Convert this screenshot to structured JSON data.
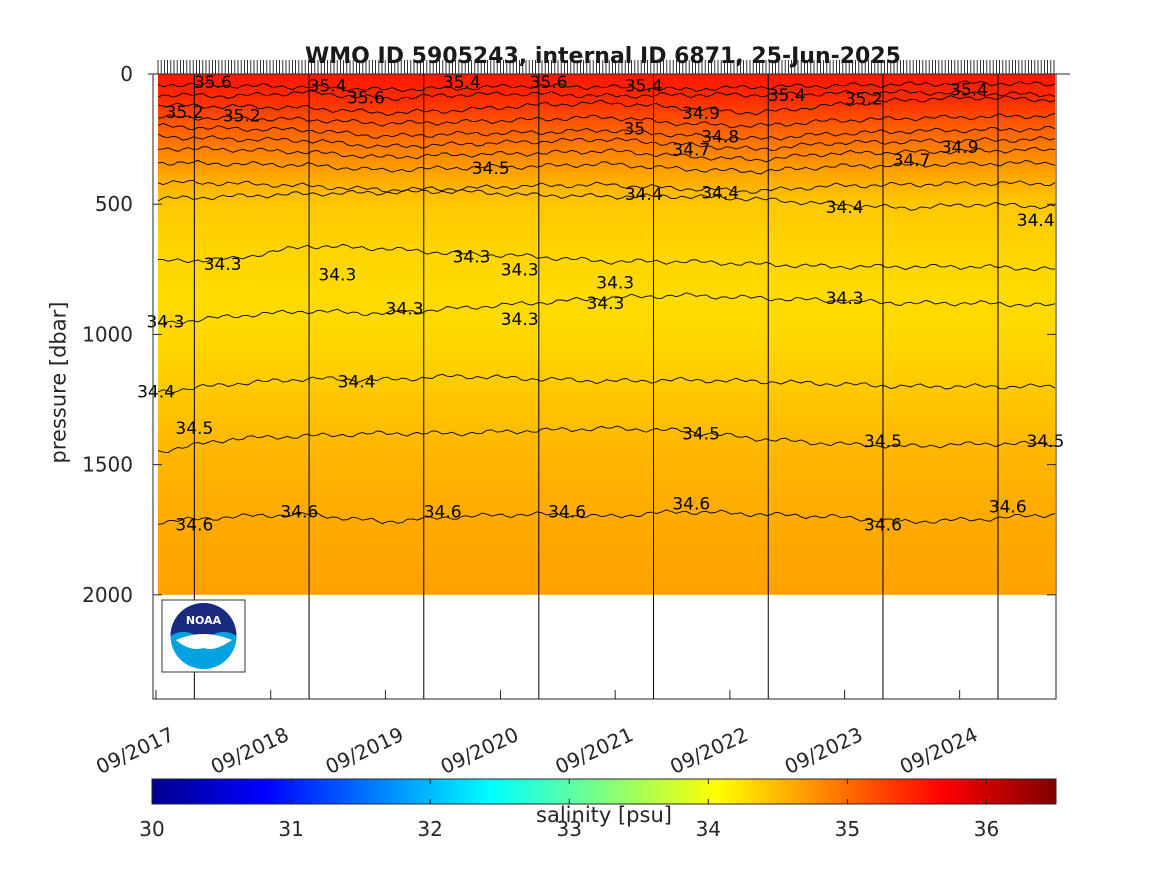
{
  "title": "WMO ID 5905243, internal ID 6871, 25-Jun-2025",
  "logo_text": "NOAA",
  "chart_data": {
    "type": "heatmap",
    "title": "WMO ID 5905243, internal ID 6871, 25-Jun-2025",
    "xlabel": "",
    "ylabel": "pressure [dbar]",
    "x_axis": {
      "type": "date",
      "range": [
        "2017-09-01",
        "2025-06-25"
      ],
      "tick_labels": [
        "09/2017",
        "09/2018",
        "09/2019",
        "09/2020",
        "09/2021",
        "09/2022",
        "09/2023",
        "09/2024"
      ],
      "tick_dates": [
        "2017-09-01",
        "2018-09-01",
        "2019-09-01",
        "2020-09-01",
        "2021-09-01",
        "2022-09-01",
        "2023-09-01",
        "2024-09-01"
      ]
    },
    "y_axis": {
      "reversed": true,
      "range": [
        0,
        2400
      ],
      "ticks": [
        0,
        500,
        1000,
        1500,
        2000
      ],
      "tick_labels": [
        "0",
        "500",
        "1000",
        "1500",
        "2000"
      ]
    },
    "data_range": {
      "pressure_max": 2000
    },
    "year_boundaries": [
      "2018-01-01",
      "2019-01-01",
      "2020-01-01",
      "2021-01-01",
      "2022-01-01",
      "2023-01-01",
      "2024-01-01",
      "2025-01-01"
    ],
    "colorbar": {
      "label": "salinity [psu]",
      "range": [
        30,
        36.5
      ],
      "ticks": [
        30,
        31,
        32,
        33,
        34,
        35,
        36
      ],
      "tick_labels": [
        "30",
        "31",
        "32",
        "33",
        "34",
        "35",
        "36"
      ],
      "colormap": "jet"
    },
    "salinity_profile": [
      {
        "pressure": 0,
        "salinity": 35.55
      },
      {
        "pressure": 100,
        "salinity": 35.4
      },
      {
        "pressure": 200,
        "salinity": 35.1
      },
      {
        "pressure": 300,
        "salinity": 34.85
      },
      {
        "pressure": 400,
        "salinity": 34.6
      },
      {
        "pressure": 500,
        "salinity": 34.42
      },
      {
        "pressure": 650,
        "salinity": 34.34
      },
      {
        "pressure": 850,
        "salinity": 34.29
      },
      {
        "pressure": 1000,
        "salinity": 34.31
      },
      {
        "pressure": 1200,
        "salinity": 34.4
      },
      {
        "pressure": 1400,
        "salinity": 34.5
      },
      {
        "pressure": 1600,
        "salinity": 34.57
      },
      {
        "pressure": 1800,
        "salinity": 34.62
      },
      {
        "pressure": 2000,
        "salinity": 34.66
      }
    ],
    "contours": [
      {
        "level": "35.6",
        "pressure": [
          40,
          45,
          50,
          60,
          55,
          45,
          50,
          60,
          50,
          45,
          40,
          35,
          40
        ]
      },
      {
        "level": "35.4",
        "pressure": [
          80,
          85,
          70,
          95,
          80,
          75,
          85,
          80,
          80,
          75,
          70,
          75,
          80
        ]
      },
      {
        "level": "35.2",
        "pressure": [
          120,
          125,
          130,
          150,
          140,
          120,
          110,
          130,
          150,
          120,
          100,
          90,
          100
        ]
      },
      {
        "level": "35",
        "pressure": [
          165,
          170,
          175,
          190,
          185,
          175,
          165,
          190,
          200,
          180,
          170,
          165,
          160
        ]
      },
      {
        "level": "34.9",
        "pressure": [
          200,
          210,
          215,
          240,
          230,
          225,
          215,
          235,
          250,
          230,
          220,
          215,
          210
        ]
      },
      {
        "level": "34.8",
        "pressure": [
          240,
          250,
          255,
          280,
          270,
          260,
          250,
          270,
          290,
          265,
          260,
          255,
          250
        ]
      },
      {
        "level": "34.7",
        "pressure": [
          285,
          290,
          300,
          320,
          310,
          305,
          295,
          315,
          330,
          305,
          300,
          295,
          290
        ]
      },
      {
        "level": "34.6",
        "pressure": [
          340,
          345,
          350,
          370,
          360,
          355,
          345,
          365,
          375,
          355,
          350,
          345,
          340
        ]
      },
      {
        "level": "34.5",
        "pressure": [
          415,
          420,
          430,
          445,
          440,
          430,
          425,
          440,
          450,
          430,
          425,
          420,
          420
        ]
      },
      {
        "level": "34.4",
        "pressure": [
          480,
          470,
          460,
          455,
          450,
          465,
          470,
          470,
          480,
          500,
          515,
          500,
          510
        ]
      },
      {
        "level": "34.3",
        "pressure": [
          720,
          710,
          660,
          670,
          690,
          700,
          720,
          720,
          730,
          740,
          740,
          740,
          750
        ]
      },
      {
        "level": "34.3",
        "pressure": [
          960,
          930,
          910,
          920,
          900,
          880,
          860,
          850,
          860,
          870,
          880,
          880,
          890
        ]
      },
      {
        "level": "34.4",
        "pressure": [
          1220,
          1190,
          1170,
          1175,
          1160,
          1170,
          1180,
          1175,
          1180,
          1190,
          1200,
          1200,
          1200
        ]
      },
      {
        "level": "34.5",
        "pressure": [
          1450,
          1400,
          1390,
          1380,
          1380,
          1370,
          1360,
          1370,
          1400,
          1420,
          1430,
          1420,
          1420
        ]
      },
      {
        "level": "34.6",
        "pressure": [
          1720,
          1700,
          1690,
          1720,
          1700,
          1690,
          1700,
          1680,
          1690,
          1700,
          1720,
          1710,
          1690
        ]
      }
    ],
    "contour_labels": [
      {
        "text": "35.6",
        "date": "2018-03-01",
        "pressure": 30
      },
      {
        "text": "35.4",
        "date": "2019-03-01",
        "pressure": 45
      },
      {
        "text": "35.6",
        "date": "2019-07-01",
        "pressure": 90
      },
      {
        "text": "35.4",
        "date": "2020-05-01",
        "pressure": 30
      },
      {
        "text": "35.6",
        "date": "2021-02-01",
        "pressure": 30
      },
      {
        "text": "35.4",
        "date": "2021-12-01",
        "pressure": 45
      },
      {
        "text": "35.2",
        "date": "2018-06-01",
        "pressure": 160
      },
      {
        "text": "35.2",
        "date": "2017-12-01",
        "pressure": 145
      },
      {
        "text": "35.2",
        "date": "2023-11-01",
        "pressure": 95
      },
      {
        "text": "35.4",
        "date": "2023-03-01",
        "pressure": 80
      },
      {
        "text": "35.4",
        "date": "2024-10-01",
        "pressure": 60
      },
      {
        "text": "35",
        "date": "2021-11-01",
        "pressure": 210
      },
      {
        "text": "34.9",
        "date": "2022-06-01",
        "pressure": 150
      },
      {
        "text": "34.8",
        "date": "2022-08-01",
        "pressure": 240
      },
      {
        "text": "34.7",
        "date": "2022-05-01",
        "pressure": 290
      },
      {
        "text": "34.7",
        "date": "2024-04-01",
        "pressure": 330
      },
      {
        "text": "34.9",
        "date": "2024-09-01",
        "pressure": 280
      },
      {
        "text": "34.5",
        "date": "2020-08-01",
        "pressure": 360
      },
      {
        "text": "34.4",
        "date": "2021-12-01",
        "pressure": 460
      },
      {
        "text": "34.4",
        "date": "2022-08-01",
        "pressure": 455
      },
      {
        "text": "34.4",
        "date": "2023-09-01",
        "pressure": 510
      },
      {
        "text": "34.4",
        "date": "2025-05-01",
        "pressure": 560
      },
      {
        "text": "34.3",
        "date": "2018-04-01",
        "pressure": 730
      },
      {
        "text": "34.3",
        "date": "2019-04-01",
        "pressure": 770
      },
      {
        "text": "34.3",
        "date": "2020-06-01",
        "pressure": 700
      },
      {
        "text": "34.3",
        "date": "2020-11-01",
        "pressure": 750
      },
      {
        "text": "34.3",
        "date": "2021-09-01",
        "pressure": 800
      },
      {
        "text": "34.3",
        "date": "2021-08-01",
        "pressure": 880
      },
      {
        "text": "34.3",
        "date": "2023-09-01",
        "pressure": 860
      },
      {
        "text": "34.3",
        "date": "2019-11-01",
        "pressure": 900
      },
      {
        "text": "34.3",
        "date": "2020-11-01",
        "pressure": 940
      },
      {
        "text": "34.3",
        "date": "2017-10-01",
        "pressure": 950
      },
      {
        "text": "34.4",
        "date": "2017-09-01",
        "pressure": 1220
      },
      {
        "text": "34.4",
        "date": "2019-06-01",
        "pressure": 1180
      },
      {
        "text": "34.5",
        "date": "2018-01-01",
        "pressure": 1360
      },
      {
        "text": "34.5",
        "date": "2022-06-01",
        "pressure": 1380
      },
      {
        "text": "34.5",
        "date": "2024-01-01",
        "pressure": 1410
      },
      {
        "text": "34.5",
        "date": "2025-06-01",
        "pressure": 1410
      },
      {
        "text": "34.6",
        "date": "2018-01-01",
        "pressure": 1730
      },
      {
        "text": "34.6",
        "date": "2018-12-01",
        "pressure": 1680
      },
      {
        "text": "34.6",
        "date": "2020-03-01",
        "pressure": 1680
      },
      {
        "text": "34.6",
        "date": "2021-04-01",
        "pressure": 1680
      },
      {
        "text": "34.6",
        "date": "2022-05-01",
        "pressure": 1650
      },
      {
        "text": "34.6",
        "date": "2024-01-01",
        "pressure": 1730
      },
      {
        "text": "34.6",
        "date": "2025-02-01",
        "pressure": 1660
      }
    ]
  }
}
